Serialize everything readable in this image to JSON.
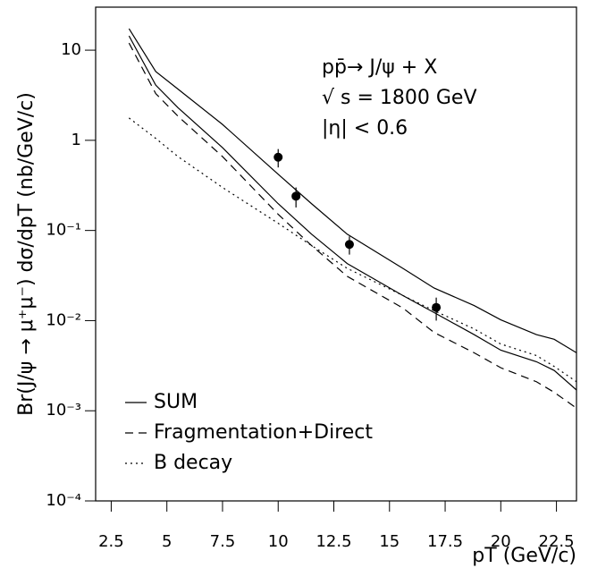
{
  "chart_data": {
    "type": "line",
    "xlabel": "pT (GeV/c)",
    "ylabel": "Br(J/ψ → μ⁺μ⁻) dσ/dpT (nb/GeV/c)",
    "annotations": [
      "pp̄→ J/ψ + X",
      "√ s = 1800 GeV",
      "|η| < 0.6"
    ],
    "xlim": [
      1.8,
      23.4
    ],
    "ylim": [
      0.0001,
      30
    ],
    "yscale": "log",
    "xticks": [
      2.5,
      5,
      7.5,
      10,
      12.5,
      15,
      17.5,
      20,
      22.5
    ],
    "yticks": [
      {
        "value": 0.0001,
        "label": "10⁻⁴"
      },
      {
        "value": 0.001,
        "label": "10⁻³"
      },
      {
        "value": 0.01,
        "label": "10⁻²"
      },
      {
        "value": 0.1,
        "label": "10⁻¹"
      },
      1,
      10
    ],
    "legend": "lower left",
    "x": [
      3.3,
      4.5,
      5.5,
      7.5,
      10,
      11.5,
      13.1,
      15.6,
      17.0,
      18.8,
      20,
      21.6,
      22.4,
      23.4
    ],
    "series": [
      {
        "name": "SUM",
        "color": "#000000",
        "dash": "solid",
        "values": [
          17.3,
          5.8,
          3.7,
          1.5,
          0.42,
          0.198,
          0.091,
          0.038,
          0.023,
          0.0147,
          0.0102,
          0.007,
          0.0062,
          0.0044
        ]
      },
      {
        "color": "#000000",
        "dash": "solid",
        "values": [
          14.4,
          4.1,
          2.3,
          0.83,
          0.198,
          0.091,
          0.043,
          0.019,
          0.0123,
          0.007,
          0.0047,
          0.0035,
          0.0028,
          0.0017
        ]
      },
      {
        "name": "Fragmentation+Direct",
        "color": "#000000",
        "dash": "dashed",
        "values": [
          12.0,
          3.3,
          1.85,
          0.66,
          0.151,
          0.068,
          0.031,
          0.0138,
          0.0074,
          0.0044,
          0.003,
          0.0021,
          0.0016,
          0.00107
        ]
      },
      {
        "name": "B decay",
        "color": "#000000",
        "dash": "dotted",
        "values": [
          1.77,
          1.05,
          0.66,
          0.3,
          0.12,
          0.068,
          0.038,
          0.019,
          0.0129,
          0.0081,
          0.0055,
          0.0041,
          0.0031,
          0.0021
        ]
      }
    ],
    "points": {
      "type": "scatter",
      "color": "#000000",
      "x": [
        10,
        10.8,
        13.2,
        17.1
      ],
      "values": [
        0.65,
        0.24,
        0.07,
        0.014
      ],
      "errors": [
        0.15,
        0.06,
        0.016,
        0.004
      ]
    }
  }
}
